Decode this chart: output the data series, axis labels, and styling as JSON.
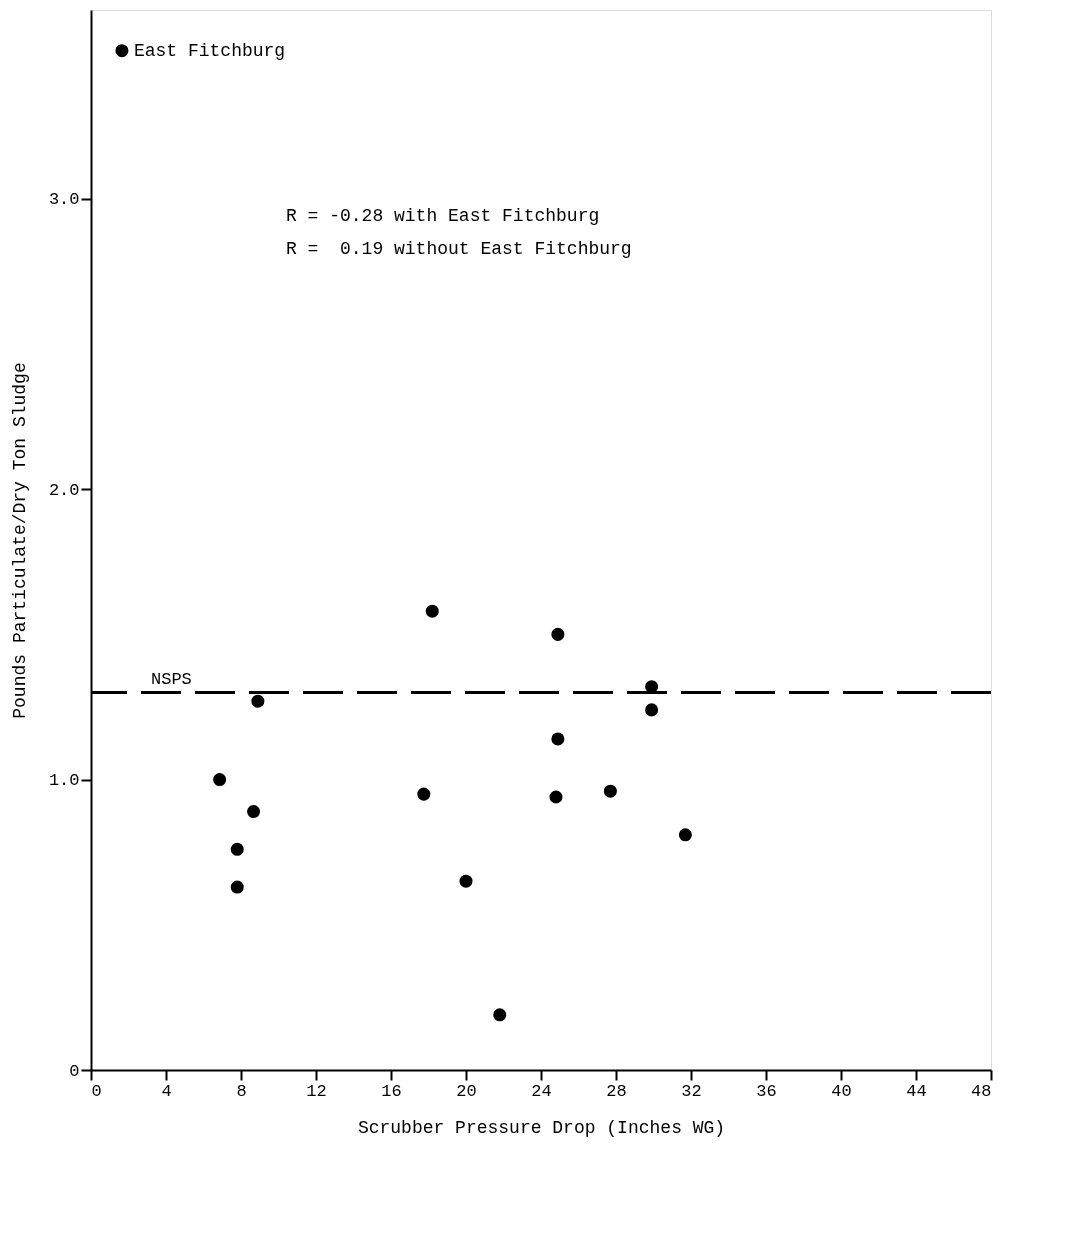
{
  "chart_data": {
    "type": "scatter",
    "xlabel": "Scrubber Pressure Drop (Inches WG)",
    "ylabel": "Pounds Particulate/Dry Ton Sludge",
    "x": [
      1.65,
      6.86,
      7.8,
      7.8,
      8.67,
      8.9,
      17.75,
      18.2,
      20.0,
      21.8,
      24.9,
      24.9,
      24.8,
      27.7,
      29.9,
      29.9,
      31.7
    ],
    "series": [
      {
        "color": "#000000",
        "values": [
          3.51,
          1.0,
          0.76,
          0.63,
          0.89,
          1.27,
          0.95,
          1.58,
          0.65,
          0.19,
          1.5,
          1.14,
          0.94,
          0.96,
          1.32,
          1.24,
          0.81
        ]
      }
    ],
    "marker": "circle",
    "grid": false,
    "xlim": [
      0,
      48
    ],
    "xticks": [
      0,
      4,
      8,
      12,
      16,
      20,
      24,
      28,
      32,
      36,
      40,
      44,
      48
    ],
    "ylim": [
      0,
      3.65
    ],
    "yticks": [
      0,
      {
        "value": 1,
        "label": "1.0"
      },
      {
        "value": 2,
        "label": "2.0"
      },
      {
        "value": 3,
        "label": "3.0"
      }
    ],
    "ref_lines": [
      {
        "axis": "y",
        "value": 1.3,
        "label": "NSPS",
        "color": "#000000",
        "line_style": "dashed"
      }
    ],
    "annotations": [
      {
        "text": "East Fitchburg",
        "x": 1.65,
        "y": 3.51
      },
      "R = -0.28 with East Fitchburg",
      "R =  0.19 without East Fitchburg"
    ]
  }
}
